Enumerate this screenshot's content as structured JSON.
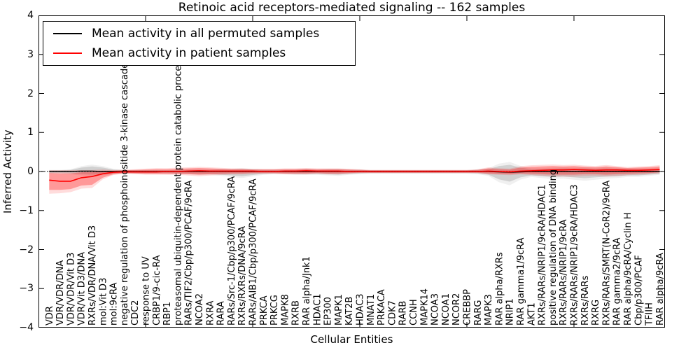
{
  "chart_data": {
    "type": "line",
    "title": "Retinoic acid receptors-mediated signaling -- 162 samples",
    "xlabel": "Cellular Entities",
    "ylabel": "Inferred Activity",
    "ylim": [
      -4,
      4
    ],
    "ytick_labels": [
      "4",
      "3",
      "2",
      "1",
      "0",
      "−1",
      "−2",
      "−3",
      "−4"
    ],
    "yticks": [
      4,
      3,
      2,
      1,
      0,
      -1,
      -2,
      -3,
      -4
    ],
    "xlim": [
      0,
      58.5
    ],
    "xticks": [
      10,
      20,
      30,
      40,
      50
    ],
    "grid": false,
    "zero_line": {
      "style": "dotted",
      "color": "#000000",
      "y": 0
    },
    "legend": {
      "position": "upper left",
      "entries": [
        {
          "label": "Mean activity in all permuted samples",
          "color": "#000000"
        },
        {
          "label": "Mean activity in patient samples",
          "color": "#ff0000"
        }
      ]
    },
    "categories": [
      "VDR",
      "VDR/VDR/DNA",
      "VDR/VDR/Vit D3",
      "VDR/Vit D3/DNA",
      "RXRs/VDR/DNA/Vit D3",
      "mol:Vit D3",
      "mol:9cRA",
      "negative regulation of phosphoinositide 3-kinase cascade",
      "CDC2",
      "response to UV",
      "CRBP1/9-cic-RA",
      "RBP1",
      "proteasomal ubiquitin-dependent protein catabolic process",
      "RARs/TIF2/Cbp/p300/PCAF/9cRA",
      "NCOA2",
      "RXRA",
      "RARA",
      "RARs/Src-1/Cbp/p300/PCAF/9cRA",
      "RXRs/RXRs/DNA/9cRA",
      "RARs/AIB1/Cbp/p300/PCAF/9cRA",
      "PRKCA",
      "PRKCG",
      "MAPK8",
      "RXRB",
      "RAR alpha/Jnk1",
      "HDAC1",
      "EP300",
      "MAPK1",
      "KAT2B",
      "HDAC3",
      "MNAT1",
      "PRKACA",
      "CDK7",
      "RARB",
      "CCNH",
      "MAPK14",
      "NCOA3",
      "NCOA1",
      "NCOR2",
      "CREBBP",
      "RARG",
      "MAPK3",
      "RAR alpha/RXRs",
      "NRIP1",
      "RAR gamma1/9cRA",
      "AKT1",
      "RXRs/RARs/NRIP1/9cRA/HDAC1",
      "positive regulation of DNA binding",
      "RXRs/RARs/NRIP1/9cRA",
      "RXRs/RARs/NRIP1/9cRA/HDAC3",
      "RXRs/RARs",
      "RXRG",
      "RXRs/RARs/SMRT(N-CoR2)/9cRA",
      "RAR gamma2/9cRA",
      "RAR alpha/9cRA/Cyclin H",
      "Cbp/p300/PCAF",
      "TFIIH",
      "RAR alpha/9cRA"
    ],
    "series": [
      {
        "name": "Mean activity in all permuted samples",
        "color": "#000000",
        "band_color": "rgba(0,0,0,0.13)",
        "values": [
          0,
          0,
          0,
          0.01,
          0.01,
          0,
          0,
          0,
          0,
          0,
          0,
          0,
          0,
          0,
          0,
          0,
          0,
          0,
          0,
          0,
          0,
          0,
          0,
          0,
          0,
          0,
          0,
          0,
          0,
          0,
          0,
          0,
          0,
          0,
          0,
          0,
          0,
          0,
          0,
          0,
          0,
          0,
          -0.01,
          -0.02,
          -0.01,
          0,
          0,
          0,
          0,
          0,
          0,
          0,
          0,
          0,
          0,
          0,
          0,
          0
        ],
        "band_hi": [
          0.03,
          0.03,
          0.04,
          0.1,
          0.13,
          0.1,
          0.05,
          0.03,
          0.03,
          0.03,
          0.03,
          0.03,
          0.03,
          0.04,
          0.04,
          0.04,
          0.05,
          0.05,
          0.06,
          0.05,
          0.04,
          0.04,
          0.04,
          0.04,
          0.05,
          0.04,
          0.05,
          0.05,
          0.04,
          0.04,
          0.03,
          0.03,
          0.03,
          0.03,
          0.03,
          0.03,
          0.03,
          0.03,
          0.03,
          0.03,
          0.04,
          0.06,
          0.14,
          0.17,
          0.1,
          0.06,
          0.06,
          0.07,
          0.08,
          0.07,
          0.08,
          0.07,
          0.08,
          0.07,
          0.06,
          0.06,
          0.06,
          0.07
        ],
        "band_lo": [
          -0.04,
          -0.04,
          -0.05,
          -0.07,
          -0.08,
          -0.07,
          -0.05,
          -0.04,
          -0.04,
          -0.04,
          -0.04,
          -0.04,
          -0.05,
          -0.05,
          -0.06,
          -0.06,
          -0.08,
          -0.1,
          -0.12,
          -0.09,
          -0.06,
          -0.05,
          -0.05,
          -0.06,
          -0.06,
          -0.06,
          -0.07,
          -0.08,
          -0.06,
          -0.05,
          -0.04,
          -0.04,
          -0.04,
          -0.04,
          -0.04,
          -0.04,
          -0.04,
          -0.04,
          -0.04,
          -0.04,
          -0.05,
          -0.08,
          -0.2,
          -0.26,
          -0.15,
          -0.1,
          -0.12,
          -0.14,
          -0.13,
          -0.15,
          -0.17,
          -0.15,
          -0.13,
          -0.12,
          -0.1,
          -0.1,
          -0.08,
          -0.06
        ]
      },
      {
        "name": "Mean activity in patient samples",
        "color": "#ff0000",
        "band_color": "rgba(255,0,0,0.30)",
        "values": [
          -0.22,
          -0.25,
          -0.25,
          -0.16,
          -0.13,
          -0.06,
          -0.02,
          -0.01,
          -0.01,
          -0.01,
          -0.01,
          0,
          0,
          0.01,
          0.02,
          0.01,
          0.01,
          0.01,
          0.01,
          0.01,
          0,
          0,
          0.01,
          0.01,
          0.02,
          0.01,
          0.01,
          0.01,
          0,
          0,
          0,
          0,
          0,
          0,
          0,
          0,
          0,
          0,
          0,
          0,
          0,
          0.01,
          0,
          -0.01,
          0.01,
          0.02,
          0.03,
          0.04,
          0.04,
          0.05,
          0.04,
          0.03,
          0.04,
          0.04,
          0.03,
          0.03,
          0.04,
          0.05
        ],
        "band_hi": [
          -0.04,
          -0.05,
          -0.05,
          -0.02,
          -0.01,
          0.02,
          0.02,
          0.03,
          0.04,
          0.05,
          0.06,
          0.06,
          0.07,
          0.08,
          0.09,
          0.08,
          0.07,
          0.06,
          0.06,
          0.05,
          0.05,
          0.05,
          0.06,
          0.06,
          0.07,
          0.06,
          0.06,
          0.06,
          0.05,
          0.04,
          0.03,
          0.03,
          0.03,
          0.03,
          0.03,
          0.03,
          0.03,
          0.03,
          0.03,
          0.03,
          0.04,
          0.08,
          0.06,
          0.05,
          0.1,
          0.12,
          0.13,
          0.14,
          0.13,
          0.14,
          0.12,
          0.11,
          0.13,
          0.11,
          0.09,
          0.1,
          0.11,
          0.13
        ],
        "band_lo": [
          -0.47,
          -0.47,
          -0.45,
          -0.36,
          -0.34,
          -0.16,
          -0.07,
          -0.04,
          -0.05,
          -0.06,
          -0.06,
          -0.06,
          -0.06,
          -0.07,
          -0.08,
          -0.07,
          -0.06,
          -0.05,
          -0.05,
          -0.04,
          -0.04,
          -0.04,
          -0.05,
          -0.05,
          -0.05,
          -0.04,
          -0.05,
          -0.05,
          -0.04,
          -0.03,
          -0.03,
          -0.03,
          -0.03,
          -0.03,
          -0.03,
          -0.03,
          -0.03,
          -0.03,
          -0.03,
          -0.03,
          -0.03,
          -0.05,
          -0.06,
          -0.07,
          -0.05,
          -0.06,
          -0.07,
          -0.08,
          -0.08,
          -0.08,
          -0.07,
          -0.07,
          -0.08,
          -0.07,
          -0.06,
          -0.05,
          -0.04,
          -0.02
        ]
      }
    ]
  }
}
